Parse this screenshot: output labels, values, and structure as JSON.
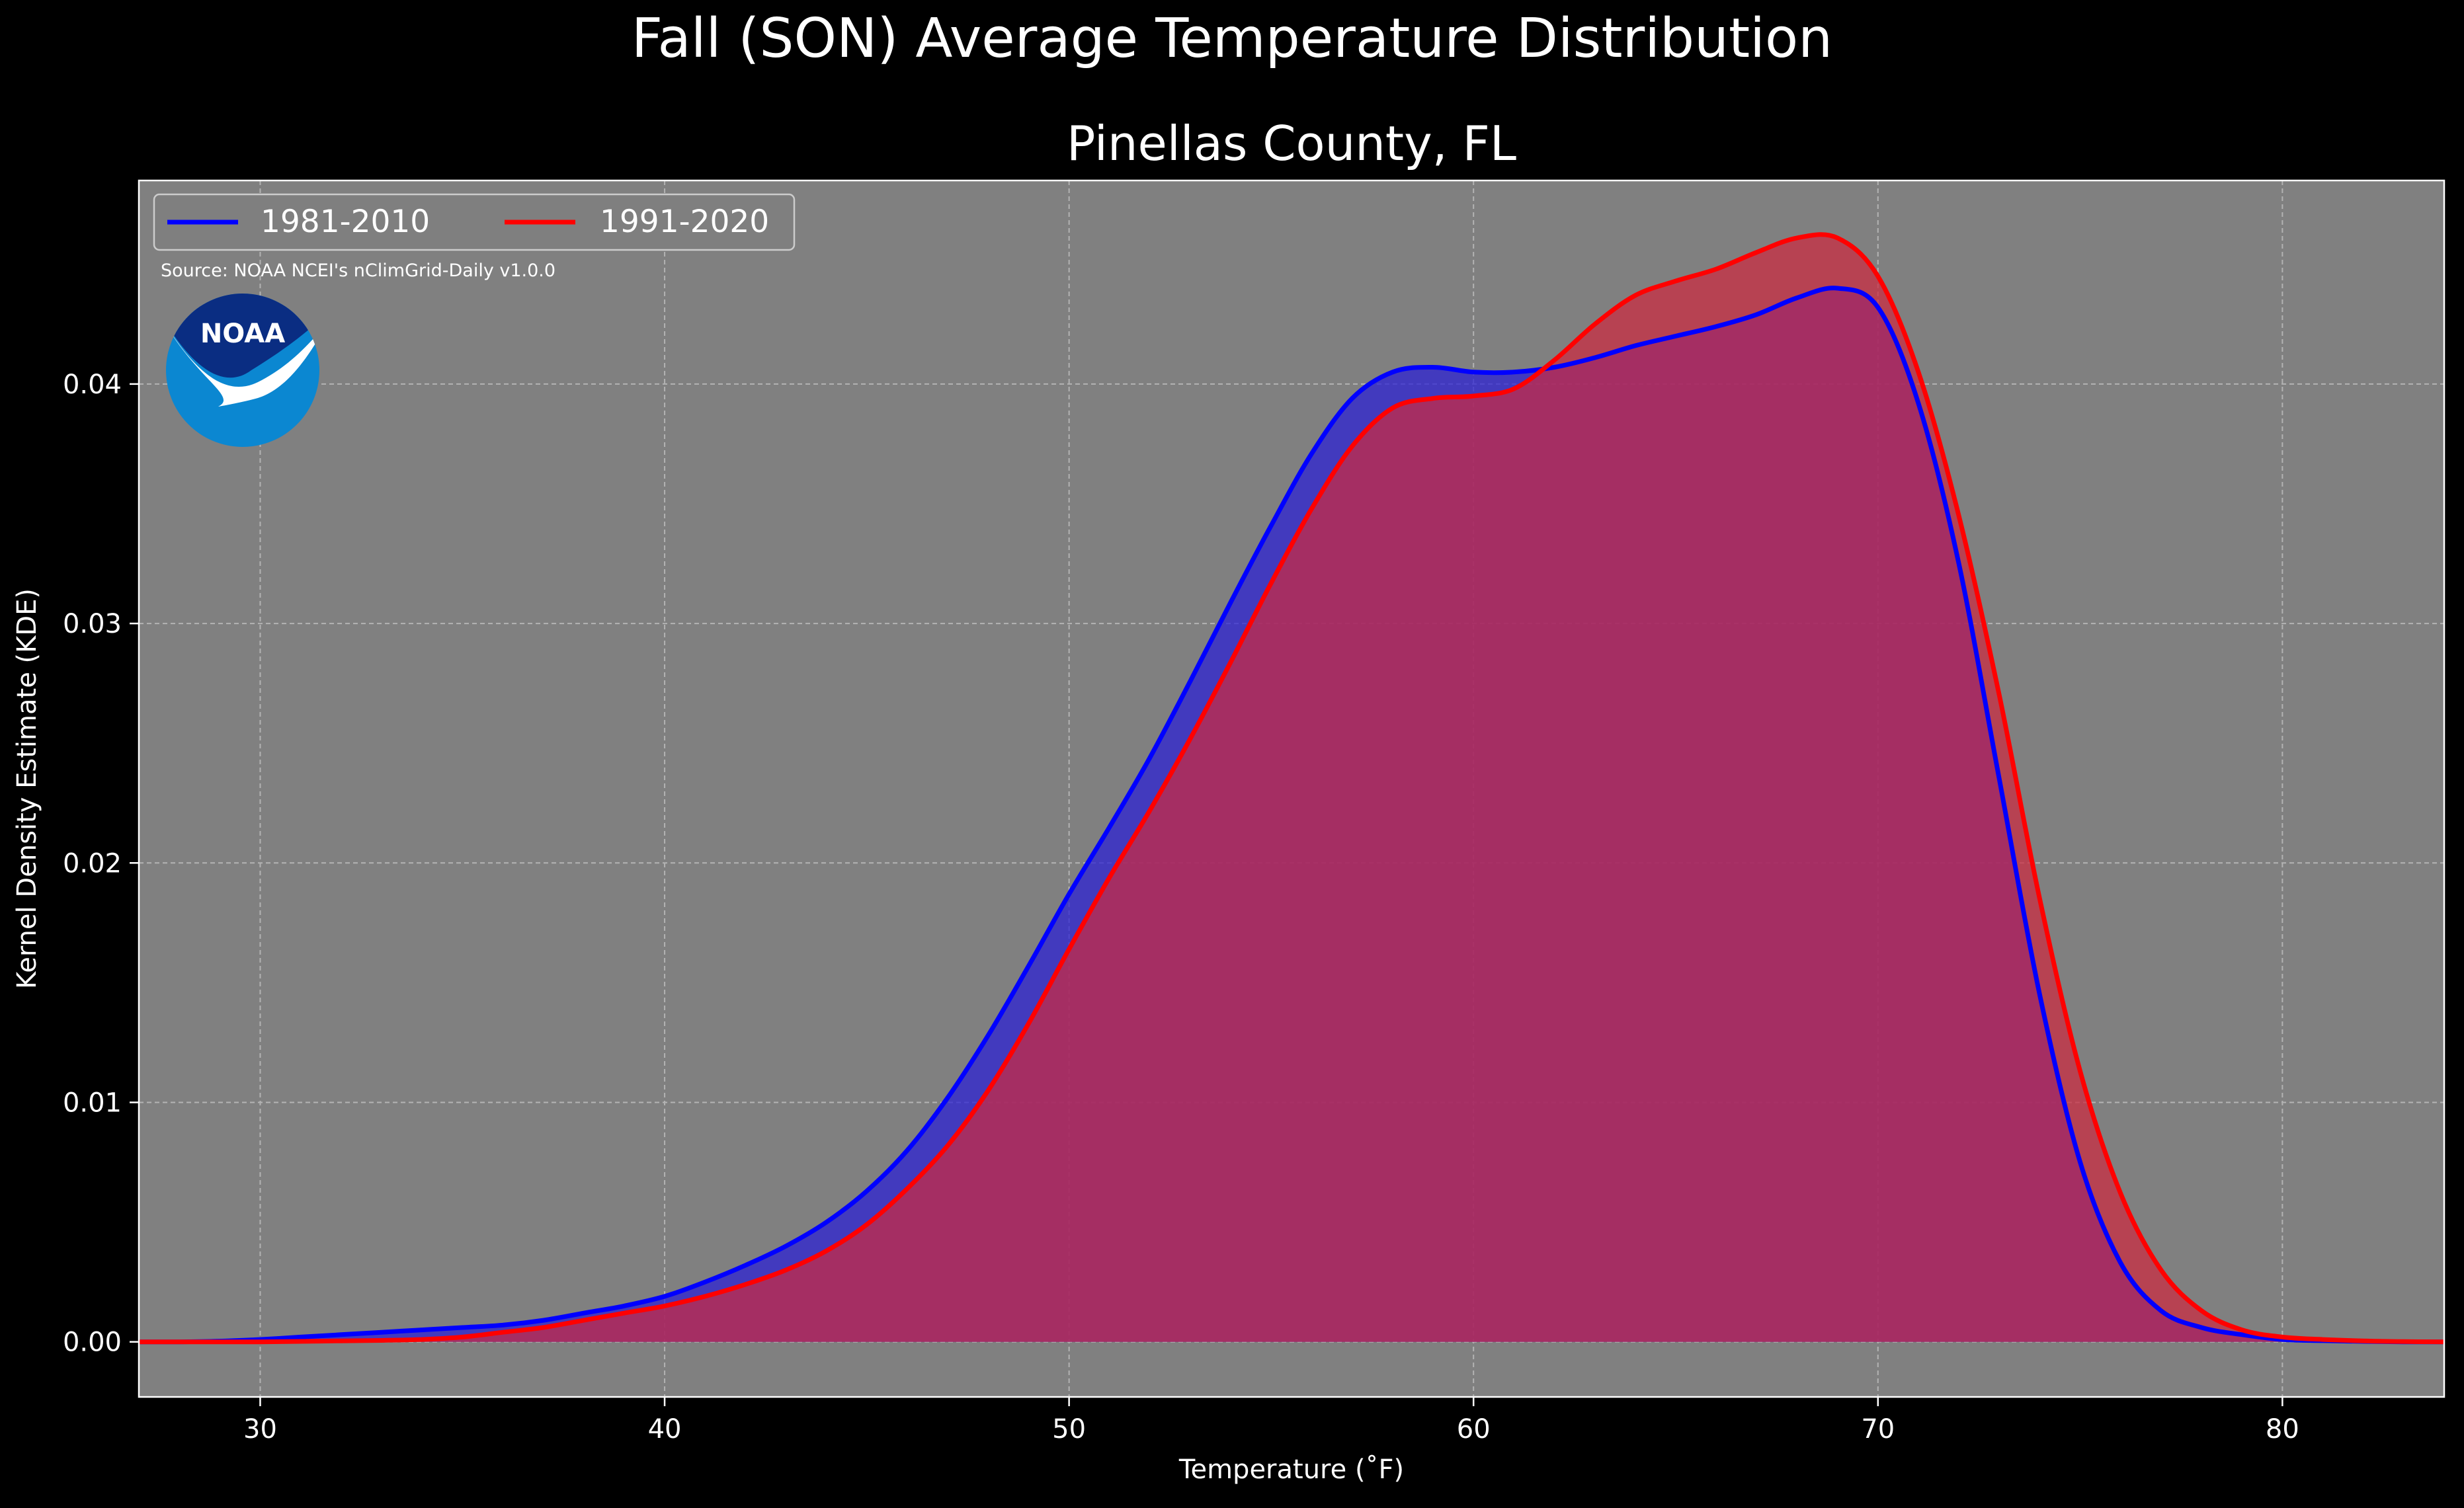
{
  "figure": {
    "suptitle": "Fall (SON) Average Temperature Distribution",
    "background": "#000000"
  },
  "chart_data": {
    "type": "area",
    "title": "Pinellas County, FL",
    "xlabel": "Temperature ($^\\circ$F)",
    "xlabel_display": "Temperature (˚F)",
    "ylabel": "Kernel Density Estimate (KDE)",
    "xlim": [
      27,
      84
    ],
    "ylim": [
      -0.0023,
      0.0485
    ],
    "xticks": [
      30,
      40,
      50,
      60,
      70,
      80
    ],
    "xtick_labels": [
      "30",
      "40",
      "50",
      "60",
      "70",
      "80"
    ],
    "yticks": [
      0.0,
      0.01,
      0.02,
      0.03,
      0.04
    ],
    "ytick_labels": [
      "0.00",
      "0.01",
      "0.02",
      "0.03",
      "0.04"
    ],
    "grid": true,
    "axes_facecolor": "#808080",
    "legend_position": "upper-left",
    "source_text": "Source: NOAA NCEI's nClimGrid-Daily v1.0.0",
    "logo": {
      "name": "noaa-logo",
      "text": "NOAA"
    },
    "x": [
      27,
      28,
      29,
      30,
      31,
      32,
      33,
      34,
      35,
      36,
      37,
      38,
      39,
      40,
      41,
      42,
      43,
      44,
      45,
      46,
      47,
      48,
      49,
      50,
      51,
      52,
      53,
      54,
      55,
      56,
      57,
      58,
      59,
      60,
      61,
      62,
      63,
      64,
      65,
      66,
      67,
      68,
      69,
      70,
      71,
      72,
      73,
      74,
      75,
      76,
      77,
      78,
      79,
      80,
      81,
      82,
      83,
      84
    ],
    "series": [
      {
        "name": "1981-2010",
        "color": "#0000ff",
        "fill_color": "#2a1fd6",
        "values": [
          0.0,
          0.0,
          3e-05,
          0.0001,
          0.0002,
          0.0003,
          0.0004,
          0.0005,
          0.0006,
          0.0007,
          0.0009,
          0.0012,
          0.0015,
          0.0019,
          0.0025,
          0.0032,
          0.004,
          0.005,
          0.0063,
          0.008,
          0.0102,
          0.0128,
          0.0157,
          0.0187,
          0.0215,
          0.0244,
          0.0276,
          0.0309,
          0.0341,
          0.0371,
          0.0394,
          0.0405,
          0.0407,
          0.0405,
          0.0405,
          0.0407,
          0.0411,
          0.0416,
          0.042,
          0.0424,
          0.0429,
          0.0436,
          0.044,
          0.0432,
          0.0392,
          0.0325,
          0.0235,
          0.0145,
          0.0075,
          0.0033,
          0.0013,
          0.0006,
          0.0003,
          0.0001,
          5e-05,
          2e-05,
          0.0,
          0.0
        ]
      },
      {
        "name": "1991-2020",
        "color": "#ff0000",
        "fill_color": "#cc2a40",
        "values": [
          0.0,
          0.0,
          0.0,
          0.0,
          2e-05,
          4e-05,
          6e-05,
          0.0001,
          0.0002,
          0.0004,
          0.0006,
          0.0009,
          0.0012,
          0.0015,
          0.0019,
          0.0024,
          0.003,
          0.0038,
          0.0049,
          0.0064,
          0.0082,
          0.0105,
          0.0133,
          0.0164,
          0.0194,
          0.0222,
          0.0252,
          0.0284,
          0.0317,
          0.0348,
          0.0374,
          0.039,
          0.0394,
          0.0395,
          0.0398,
          0.041,
          0.0425,
          0.0437,
          0.0443,
          0.0448,
          0.0455,
          0.0461,
          0.0461,
          0.0445,
          0.0405,
          0.0345,
          0.027,
          0.0185,
          0.0113,
          0.0062,
          0.003,
          0.0013,
          0.0005,
          0.0002,
          0.0001,
          4e-05,
          1e-05,
          0.0
        ]
      }
    ]
  }
}
